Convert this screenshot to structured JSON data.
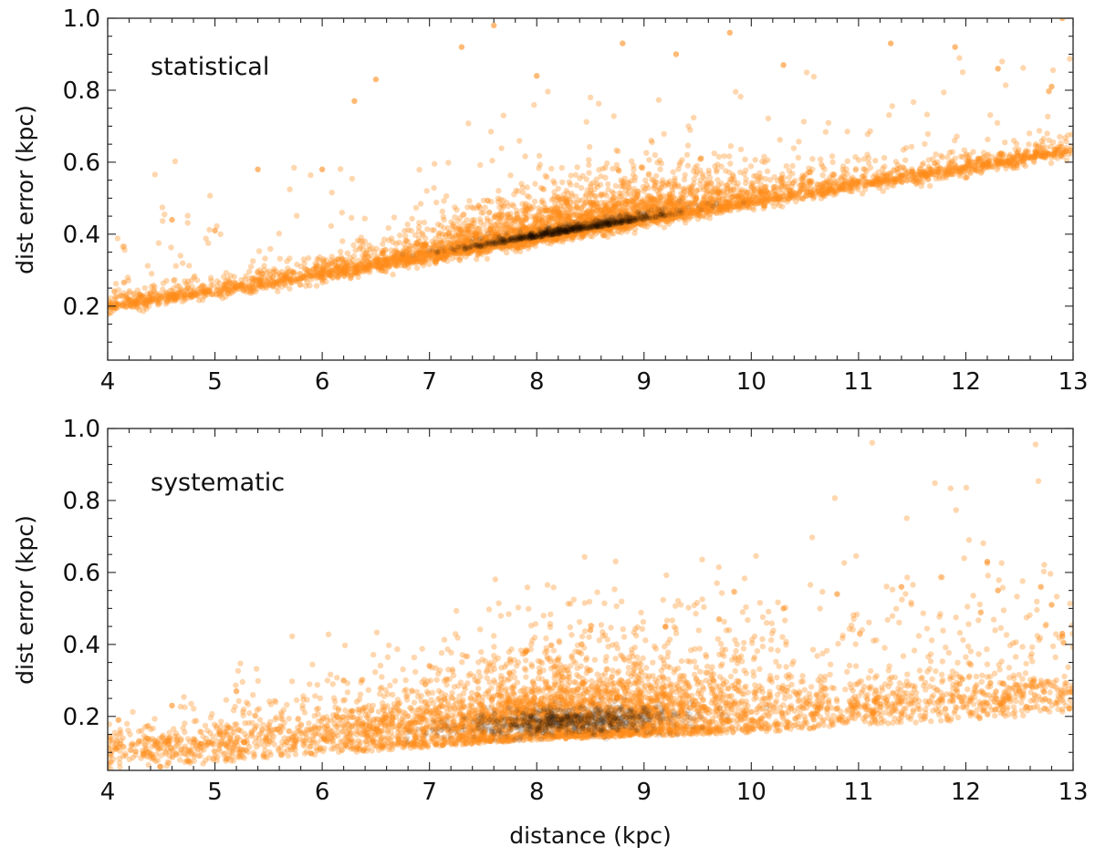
{
  "chart_data": [
    {
      "type": "scatter",
      "panel_label": "statistical",
      "xlabel": "",
      "ylabel": "dist error (kpc)",
      "xlim": [
        4,
        13
      ],
      "ylim": [
        0.05,
        1.0
      ],
      "xticks": [
        "4",
        "5",
        "6",
        "7",
        "8",
        "9",
        "10",
        "11",
        "12",
        "13"
      ],
      "yticks": [
        "0.2",
        "0.4",
        "0.6",
        "0.8",
        "1.0"
      ],
      "point_color": "#ff8c1a",
      "dense_color": "#1a0a00",
      "grid": false,
      "trend": {
        "x": [
          4,
          5,
          6,
          7,
          8,
          9,
          10,
          11,
          12,
          13
        ],
        "y": [
          0.2,
          0.245,
          0.29,
          0.34,
          0.39,
          0.44,
          0.49,
          0.54,
          0.585,
          0.635
        ]
      },
      "density_peak": {
        "x": 8.3,
        "y": 0.4
      },
      "outlier_samples": [
        {
          "x": 4.6,
          "y": 0.44
        },
        {
          "x": 5.0,
          "y": 0.41
        },
        {
          "x": 5.4,
          "y": 0.58
        },
        {
          "x": 6.0,
          "y": 0.58
        },
        {
          "x": 6.5,
          "y": 0.83
        },
        {
          "x": 6.3,
          "y": 0.77
        },
        {
          "x": 7.3,
          "y": 0.92
        },
        {
          "x": 7.6,
          "y": 0.98
        },
        {
          "x": 8.0,
          "y": 0.84
        },
        {
          "x": 8.8,
          "y": 0.93
        },
        {
          "x": 9.3,
          "y": 0.9
        },
        {
          "x": 9.8,
          "y": 0.96
        },
        {
          "x": 10.3,
          "y": 0.87
        },
        {
          "x": 11.3,
          "y": 0.93
        },
        {
          "x": 11.9,
          "y": 0.92
        },
        {
          "x": 12.9,
          "y": 1.0
        },
        {
          "x": 12.3,
          "y": 0.86
        },
        {
          "x": 12.8,
          "y": 0.81
        }
      ]
    },
    {
      "type": "scatter",
      "panel_label": "systematic",
      "xlabel": "distance (kpc)",
      "ylabel": "dist error (kpc)",
      "xlim": [
        4,
        13
      ],
      "ylim": [
        0.05,
        1.0
      ],
      "xticks": [
        "4",
        "5",
        "6",
        "7",
        "8",
        "9",
        "10",
        "11",
        "12",
        "13"
      ],
      "yticks": [
        "0.2",
        "0.4",
        "0.6",
        "0.8",
        "1.0"
      ],
      "point_color": "#ff8c1a",
      "dense_color": "#1a0a00",
      "grid": false,
      "trend": {
        "x": [
          4,
          5,
          6,
          7,
          8,
          9,
          10,
          11,
          12,
          13
        ],
        "y": [
          0.1,
          0.12,
          0.145,
          0.165,
          0.185,
          0.195,
          0.205,
          0.225,
          0.24,
          0.26
        ]
      },
      "density_peak": {
        "x": 8.3,
        "y": 0.19
      },
      "outlier_samples": [
        {
          "x": 4.1,
          "y": 0.19
        },
        {
          "x": 4.6,
          "y": 0.23
        },
        {
          "x": 5.2,
          "y": 0.27
        },
        {
          "x": 6.2,
          "y": 0.3
        },
        {
          "x": 7.0,
          "y": 0.34
        },
        {
          "x": 7.9,
          "y": 0.38
        },
        {
          "x": 8.5,
          "y": 0.44
        },
        {
          "x": 9.2,
          "y": 0.45
        },
        {
          "x": 9.7,
          "y": 0.47
        },
        {
          "x": 10.3,
          "y": 0.5
        },
        {
          "x": 10.8,
          "y": 0.54
        },
        {
          "x": 11.4,
          "y": 0.56
        },
        {
          "x": 12.2,
          "y": 0.63
        },
        {
          "x": 12.3,
          "y": 0.55
        },
        {
          "x": 12.7,
          "y": 0.56
        },
        {
          "x": 12.8,
          "y": 0.51
        },
        {
          "x": 12.9,
          "y": 0.43
        }
      ]
    }
  ]
}
